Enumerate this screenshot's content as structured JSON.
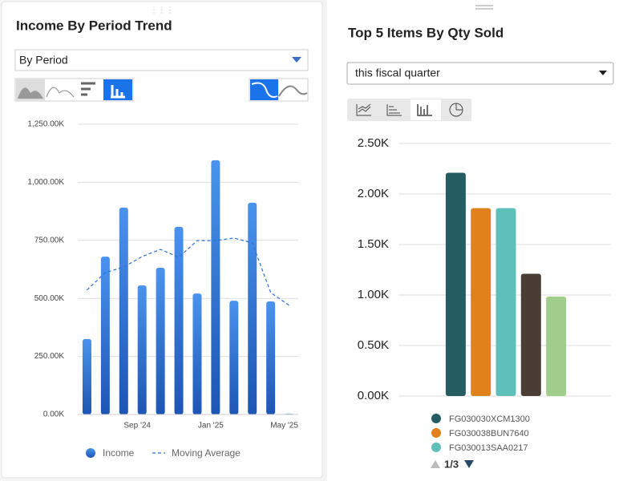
{
  "chart_data": [
    {
      "type": "bar",
      "title": "Income By Period Trend",
      "categories": [
        null,
        null,
        null,
        "Sep '24",
        null,
        null,
        null,
        "Jan '25",
        null,
        null,
        null,
        "May '25"
      ],
      "series": [
        {
          "name": "Income",
          "type": "bar",
          "color": "#3b7fe0",
          "values": [
            325000,
            680000,
            891000,
            556000,
            632000,
            808000,
            521000,
            1095000,
            490000,
            912000,
            487000,
            3000
          ]
        },
        {
          "name": "Moving Average",
          "type": "line",
          "color": "#2a6fd6",
          "values": [
            536000,
            611000,
            635000,
            680000,
            711000,
            677000,
            749000,
            749000,
            760000,
            739000,
            525000,
            470000
          ]
        }
      ],
      "ylim": [
        0,
        1250000
      ],
      "yticks": [
        {
          "value": 0,
          "label": "0.00K"
        },
        {
          "value": 250000,
          "label": "250.00K"
        },
        {
          "value": 500000,
          "label": "500.00K"
        },
        {
          "value": 750000,
          "label": "750.00K"
        },
        {
          "value": 1000000,
          "label": "1,000.00K"
        },
        {
          "value": 1250000,
          "label": "1,250.00K"
        }
      ],
      "grid": true,
      "legend": "bottom"
    },
    {
      "type": "bar",
      "title": "Top 5 Items By Qty Sold",
      "categories": [
        "FG030030XCM1300",
        "FG030038BUN7640",
        "FG030013SAA0217",
        null,
        null
      ],
      "values": [
        2210,
        1860,
        1860,
        1210,
        985
      ],
      "colors": [
        "#235d62",
        "#e0821b",
        "#5fc0ba",
        "#4a3d36",
        "#a0cd8b"
      ],
      "ylim": [
        0,
        2500
      ],
      "yticks": [
        {
          "value": 0,
          "label": "0.00K"
        },
        {
          "value": 500,
          "label": "0.50K"
        },
        {
          "value": 1000,
          "label": "1.00K"
        },
        {
          "value": 1500,
          "label": "1.50K"
        },
        {
          "value": 2000,
          "label": "2.00K"
        },
        {
          "value": 2500,
          "label": "2.50K"
        }
      ],
      "grid": true,
      "legend": "bottom"
    }
  ],
  "controls": {
    "period_select": "By Period",
    "quarter_select": "this fiscal quarter",
    "legend_page": "1/3"
  }
}
